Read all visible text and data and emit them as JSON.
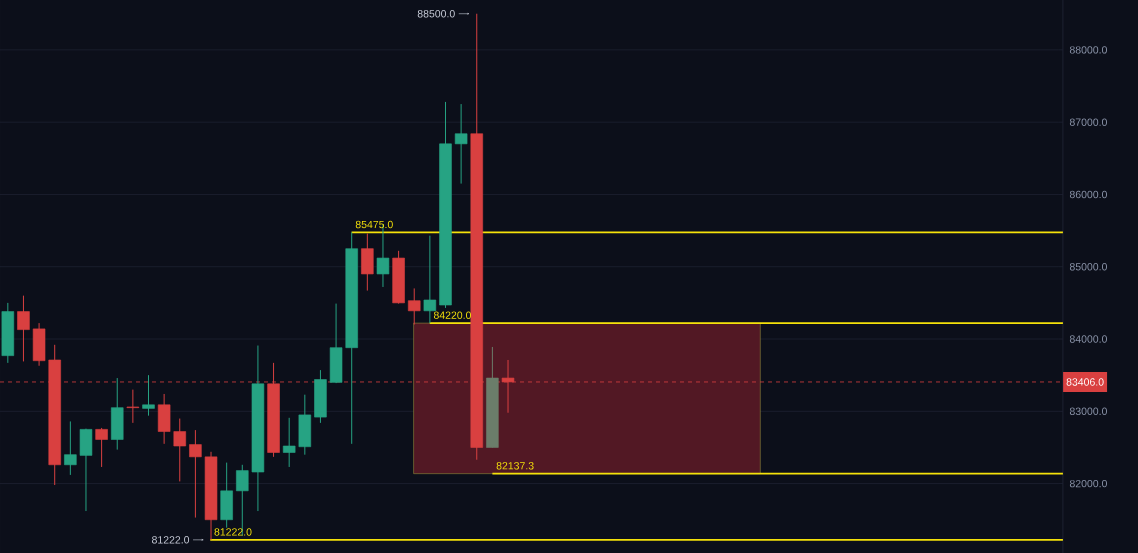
{
  "chart_data": {
    "type": "candlestick",
    "categories": [
      null,
      null,
      null,
      null,
      null,
      null,
      null,
      null,
      null,
      null,
      null,
      null,
      null,
      null,
      null,
      null,
      null,
      null,
      null,
      null,
      null,
      null,
      null,
      null,
      null,
      null,
      null,
      null,
      null,
      null,
      null,
      null,
      null,
      null,
      null,
      null,
      null,
      null,
      null,
      null,
      null,
      null,
      null,
      null,
      null,
      null,
      null,
      null,
      null,
      null,
      null,
      null,
      null,
      null,
      null,
      null,
      null,
      null,
      null,
      null,
      null,
      null,
      null,
      null,
      null,
      null,
      null,
      null
    ],
    "ohlc": [
      [
        83770,
        84500,
        83670,
        84380
      ],
      [
        84380,
        84600,
        83690,
        84130
      ],
      [
        84140,
        84220,
        83630,
        83700
      ],
      [
        83710,
        83920,
        81980,
        82260
      ],
      [
        82260,
        82860,
        82120,
        82400
      ],
      [
        82390,
        82760,
        81620,
        82750
      ],
      [
        82750,
        82770,
        82230,
        82610
      ],
      [
        82610,
        83460,
        82470,
        83050
      ],
      [
        83060,
        83300,
        82840,
        83050
      ],
      [
        83040,
        83500,
        82940,
        83090
      ],
      [
        83090,
        83240,
        82550,
        82720
      ],
      [
        82720,
        82900,
        82030,
        82520
      ],
      [
        82540,
        82740,
        81530,
        82370
      ],
      [
        82370,
        82440,
        81222,
        81500
      ],
      [
        81500,
        82290,
        81390,
        81900
      ],
      [
        81900,
        82260,
        81280,
        82180
      ],
      [
        82160,
        83910,
        81620,
        83380
      ],
      [
        83380,
        83670,
        82370,
        82430
      ],
      [
        82430,
        82910,
        82230,
        82520
      ],
      [
        82510,
        83230,
        82400,
        82950
      ],
      [
        82920,
        83570,
        82840,
        83440
      ],
      [
        83400,
        84490,
        83390,
        83880
      ],
      [
        83880,
        85475,
        82550,
        85250
      ],
      [
        85250,
        85460,
        84670,
        84900
      ],
      [
        84900,
        85590,
        84720,
        85120
      ],
      [
        85120,
        85220,
        84490,
        84500
      ],
      [
        84530,
        84700,
        84200,
        84390
      ],
      [
        84390,
        85430,
        84220,
        84540
      ],
      [
        84470,
        87280,
        84430,
        86700
      ],
      [
        86700,
        87250,
        86150,
        86840
      ],
      [
        86840,
        88500,
        82330,
        82500
      ],
      [
        82500,
        83890,
        82500,
        83460
      ],
      [
        83460,
        83710,
        82980,
        83406
      ],
      null,
      null,
      null,
      null,
      null,
      null,
      null,
      null,
      null,
      null,
      null,
      null,
      null,
      null,
      null,
      null,
      null,
      null,
      null,
      null,
      null,
      null,
      null,
      null,
      null,
      null,
      null,
      null,
      null,
      null,
      null,
      null,
      null,
      null,
      null
    ],
    "colors": [
      "#26a383",
      "#d94040",
      "#d94040",
      "#d94040",
      "#26a383",
      "#26a383",
      "#d94040",
      "#26a383",
      "#d94040",
      "#26a383",
      "#d94040",
      "#d94040",
      "#d94040",
      "#d94040",
      "#26a383",
      "#26a383",
      "#26a383",
      "#d94040",
      "#26a383",
      "#26a383",
      "#26a383",
      "#26a383",
      "#26a383",
      "#d94040",
      "#26a383",
      "#d94040",
      "#d94040",
      "#26a383",
      "#26a383",
      "#26a383",
      "#d94040",
      "#6b7d6a",
      "#d94040",
      null,
      null,
      null,
      null,
      null,
      null,
      null,
      null,
      null,
      null,
      null,
      null,
      null,
      null,
      null,
      null,
      null,
      null,
      null,
      null,
      null,
      null,
      null,
      null,
      null,
      null,
      null,
      null,
      null,
      null,
      null,
      null,
      null,
      null,
      null
    ],
    "ylim": [
      81040,
      88690
    ],
    "yticks": [
      {
        "value": 82000,
        "label": "82000.0"
      },
      {
        "value": 83000,
        "label": "83000.0"
      },
      {
        "value": 84000,
        "label": "84000.0"
      },
      {
        "value": 85000,
        "label": "85000.0"
      },
      {
        "value": 86000,
        "label": "86000.0"
      },
      {
        "value": 87000,
        "label": "87000.0"
      },
      {
        "value": 88000,
        "label": "88000.0"
      }
    ],
    "grid": true,
    "ref_lines": [
      {
        "axis": "y",
        "value": 85475,
        "label": "85475.0",
        "color": "#f5e20a"
      },
      {
        "axis": "y",
        "value": 84220,
        "label": "84220.0",
        "color": "#f5e20a"
      },
      {
        "axis": "y",
        "value": 82137.3,
        "label": "82137.3",
        "color": "#f5e20a"
      },
      {
        "axis": "y",
        "value": 81222,
        "label": "81222.0",
        "color": "#f5e20a"
      },
      {
        "axis": "y",
        "value": 83406,
        "label": "83406.0",
        "color": "#d94040",
        "line_style": "dashed"
      }
    ],
    "bands": [
      {
        "axis": "y",
        "from": 82137.3,
        "to": 84220,
        "color": "#521824"
      }
    ],
    "annotations": [
      "88500.0",
      "81222.0"
    ]
  }
}
